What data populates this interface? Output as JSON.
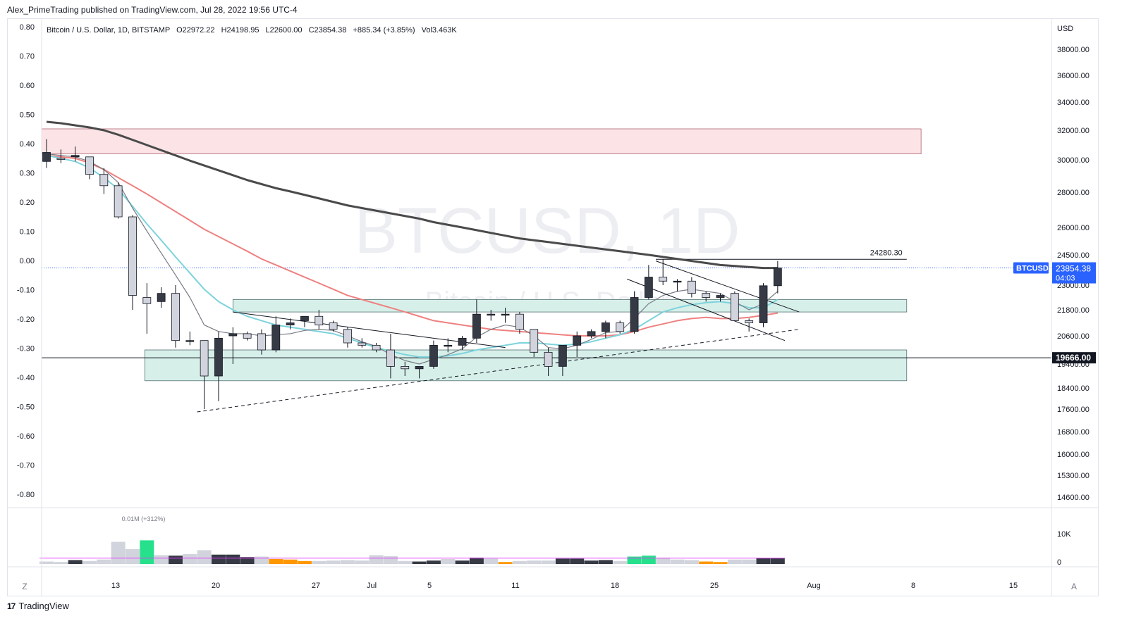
{
  "publisher_line": "Alex_PrimeTrading published on TradingView.com, Jul 28, 2022 19:56 UTC-4",
  "legend": {
    "name": "Bitcoin / U.S. Dollar, 1D, BITSTAMP",
    "open": "O22972.22",
    "high": "H24198.95",
    "low": "L22600.00",
    "close": "C23854.38",
    "change": "+885.34 (+3.85%)",
    "volume": "Vol3.463K"
  },
  "watermark": {
    "symbol": "BTCUSD, 1D",
    "name": "Bitcoin / U.S. Dollar"
  },
  "price_axis_unit": "USD",
  "current_price": {
    "symbol_tag": "BTCUSD",
    "price": "23854.38",
    "countdown": "04:03"
  },
  "horizontal_level": "19666.00",
  "resistance_label": "24280.30",
  "volume_peak_label": "0.01M (+312%)",
  "volume_axis_labels": [
    "10K",
    "0"
  ],
  "bottom_left_button": "Z",
  "bottom_right_button": "A",
  "footer_brand": "TradingView",
  "colors": {
    "up_candle": "#363a45",
    "down_candle": "#d1d4dc",
    "ema_fast": "#787b86",
    "ema_cyan": "#7dd3dc",
    "ema_red": "#ef8080",
    "ema_slow": "#4a4a4a",
    "supply_zone": "#fce4e6",
    "demand_zone": "#d7efe9",
    "price_tag": "#2962ff",
    "vol_green": "#26e08c",
    "vol_orange": "#ff9800",
    "vol_avg": "#e040fb"
  },
  "chart_data": {
    "type": "candlestick",
    "left_axis": {
      "ticks": [
        "0.80",
        "0.70",
        "0.60",
        "0.50",
        "0.40",
        "0.30",
        "0.20",
        "0.10",
        "0.00",
        "-0.10",
        "-0.20",
        "-0.30",
        "-0.40",
        "-0.50",
        "-0.60",
        "-0.70",
        "-0.80"
      ]
    },
    "right_axis": {
      "ticks": [
        "38000.00",
        "36000.00",
        "34000.00",
        "32000.00",
        "30000.00",
        "28000.00",
        "26000.00",
        "24500.00",
        "23000.00",
        "21800.00",
        "20600.00",
        "19400.00",
        "18400.00",
        "17600.00",
        "16800.00",
        "16000.00",
        "15300.00",
        "14600.00"
      ]
    },
    "x_axis": {
      "labels": [
        "13",
        "20",
        "27",
        "Jul",
        "5",
        "11",
        "18",
        "25",
        "Aug",
        "8",
        "15"
      ]
    },
    "candles": [
      {
        "o": 29900,
        "h": 31400,
        "l": 29500,
        "c": 30500
      },
      {
        "o": 30100,
        "h": 30700,
        "l": 29800,
        "c": 30050
      },
      {
        "o": 30200,
        "h": 30900,
        "l": 29900,
        "c": 30300
      },
      {
        "o": 30200,
        "h": 30200,
        "l": 28800,
        "c": 29100
      },
      {
        "o": 29100,
        "h": 29500,
        "l": 27900,
        "c": 28400
      },
      {
        "o": 28400,
        "h": 28600,
        "l": 26500,
        "c": 26600
      },
      {
        "o": 26600,
        "h": 26700,
        "l": 21800,
        "c": 22500
      },
      {
        "o": 22400,
        "h": 23100,
        "l": 20700,
        "c": 22100
      },
      {
        "o": 22200,
        "h": 22900,
        "l": 21900,
        "c": 22600
      },
      {
        "o": 22600,
        "h": 23000,
        "l": 20100,
        "c": 20400
      },
      {
        "o": 20400,
        "h": 20800,
        "l": 20200,
        "c": 20400
      },
      {
        "o": 20400,
        "h": 20400,
        "l": 17600,
        "c": 18900
      },
      {
        "o": 18900,
        "h": 20800,
        "l": 17900,
        "c": 20500
      },
      {
        "o": 20600,
        "h": 21000,
        "l": 19400,
        "c": 20700
      },
      {
        "o": 20700,
        "h": 20800,
        "l": 20400,
        "c": 20500
      },
      {
        "o": 20700,
        "h": 20900,
        "l": 19800,
        "c": 20000
      },
      {
        "o": 20000,
        "h": 21500,
        "l": 19900,
        "c": 21100
      },
      {
        "o": 21100,
        "h": 21400,
        "l": 20900,
        "c": 21200
      },
      {
        "o": 21300,
        "h": 21500,
        "l": 21000,
        "c": 21500
      },
      {
        "o": 21500,
        "h": 21800,
        "l": 20900,
        "c": 21100
      },
      {
        "o": 21200,
        "h": 21300,
        "l": 20800,
        "c": 20900
      },
      {
        "o": 20900,
        "h": 21000,
        "l": 20100,
        "c": 20300
      },
      {
        "o": 20300,
        "h": 20500,
        "l": 20100,
        "c": 20200
      },
      {
        "o": 20200,
        "h": 20300,
        "l": 19900,
        "c": 20000
      },
      {
        "o": 20000,
        "h": 20700,
        "l": 18800,
        "c": 19300
      },
      {
        "o": 19300,
        "h": 19500,
        "l": 18900,
        "c": 19200
      },
      {
        "o": 19200,
        "h": 19300,
        "l": 18800,
        "c": 19300
      },
      {
        "o": 19300,
        "h": 20400,
        "l": 19200,
        "c": 20200
      },
      {
        "o": 20200,
        "h": 20500,
        "l": 19900,
        "c": 20200
      },
      {
        "o": 20200,
        "h": 20600,
        "l": 20000,
        "c": 20500
      },
      {
        "o": 20500,
        "h": 22300,
        "l": 20300,
        "c": 21600
      },
      {
        "o": 21600,
        "h": 21800,
        "l": 21300,
        "c": 21600
      },
      {
        "o": 21600,
        "h": 21900,
        "l": 21200,
        "c": 21600
      },
      {
        "o": 21600,
        "h": 21700,
        "l": 20700,
        "c": 20900
      },
      {
        "o": 20900,
        "h": 20900,
        "l": 19700,
        "c": 19900
      },
      {
        "o": 19900,
        "h": 20100,
        "l": 18900,
        "c": 19300
      },
      {
        "o": 19300,
        "h": 20200,
        "l": 18900,
        "c": 20200
      },
      {
        "o": 20200,
        "h": 20800,
        "l": 19700,
        "c": 20600
      },
      {
        "o": 20600,
        "h": 20900,
        "l": 20500,
        "c": 20800
      },
      {
        "o": 20800,
        "h": 21300,
        "l": 20500,
        "c": 21200
      },
      {
        "o": 21200,
        "h": 21300,
        "l": 20700,
        "c": 20800
      },
      {
        "o": 20800,
        "h": 22700,
        "l": 20700,
        "c": 22400
      },
      {
        "o": 22400,
        "h": 24000,
        "l": 22300,
        "c": 23400
      },
      {
        "o": 23400,
        "h": 24280,
        "l": 23000,
        "c": 23200
      },
      {
        "o": 23200,
        "h": 23300,
        "l": 22700,
        "c": 23200
      },
      {
        "o": 23200,
        "h": 23400,
        "l": 22400,
        "c": 22600
      },
      {
        "o": 22600,
        "h": 22700,
        "l": 22200,
        "c": 22400
      },
      {
        "o": 22400,
        "h": 22600,
        "l": 22200,
        "c": 22500
      },
      {
        "o": 22600,
        "h": 22700,
        "l": 21300,
        "c": 21300
      },
      {
        "o": 21300,
        "h": 21400,
        "l": 20800,
        "c": 21200
      },
      {
        "o": 21200,
        "h": 23100,
        "l": 21000,
        "c": 22972
      },
      {
        "o": 22972,
        "h": 24199,
        "l": 22600,
        "c": 23854
      }
    ],
    "ema_slow": [
      32600,
      32500,
      32350,
      32200,
      32000,
      31700,
      31350,
      31000,
      30650,
      30300,
      29950,
      29650,
      29350,
      29050,
      28750,
      28500,
      28250,
      28050,
      27850,
      27650,
      27450,
      27250,
      27100,
      26950,
      26800,
      26650,
      26500,
      26300,
      26150,
      26000,
      25850,
      25700,
      25550,
      25400,
      25300,
      25200,
      25100,
      25000,
      24900,
      24800,
      24700,
      24600,
      24500,
      24400,
      24300,
      24200,
      24100,
      24000,
      23950,
      23900,
      23850,
      23850
    ],
    "ema_red": [
      30300,
      30200,
      30100,
      29800,
      29400,
      28900,
      28400,
      27900,
      27400,
      26900,
      26400,
      25900,
      25500,
      25100,
      24700,
      24300,
      24000,
      23700,
      23400,
      23100,
      22800,
      22500,
      22300,
      22100,
      21900,
      21700,
      21500,
      21300,
      21200,
      21100,
      21000,
      20900,
      20850,
      20800,
      20750,
      20700,
      20650,
      20600,
      20600,
      20600,
      20650,
      20800,
      21000,
      21150,
      21300,
      21400,
      21450,
      21400,
      21400,
      21450,
      21550,
      21650
    ],
    "ema_cyan": [
      30300,
      30100,
      29900,
      29500,
      28900,
      28200,
      27200,
      26200,
      25300,
      24400,
      23600,
      22800,
      22200,
      21800,
      21500,
      21300,
      21100,
      21000,
      20900,
      20800,
      20700,
      20500,
      20300,
      20100,
      19950,
      19800,
      19700,
      19700,
      19750,
      19850,
      20000,
      20100,
      20200,
      20300,
      20300,
      20250,
      20200,
      20250,
      20350,
      20500,
      20650,
      20900,
      21300,
      21700,
      21900,
      22050,
      22150,
      22200,
      22100,
      21900,
      21900,
      22300
    ],
    "ema_fast": [
      30400,
      30300,
      30200,
      29900,
      29400,
      28600,
      27100,
      25800,
      24600,
      23500,
      22400,
      21100,
      20800,
      20700,
      20700,
      20600,
      20650,
      20700,
      20850,
      20900,
      20850,
      20600,
      20350,
      20150,
      19800,
      19550,
      19400,
      19600,
      19800,
      20050,
      20550,
      20900,
      21100,
      21000,
      20600,
      20100,
      20050,
      20200,
      20450,
      20750,
      20800,
      21400,
      22100,
      22500,
      22700,
      22800,
      22700,
      22600,
      22200,
      21800,
      22100,
      22700
    ],
    "volume": [
      {
        "v": 0.5,
        "c": "down"
      },
      {
        "v": 0.4,
        "c": "down"
      },
      {
        "v": 0.8,
        "c": "up"
      },
      {
        "v": 0.6,
        "c": "down"
      },
      {
        "v": 0.9,
        "c": "down"
      },
      {
        "v": 4.5,
        "c": "down"
      },
      {
        "v": 3.0,
        "c": "down"
      },
      {
        "v": 4.8,
        "c": "green"
      },
      {
        "v": 1.8,
        "c": "down"
      },
      {
        "v": 1.7,
        "c": "up"
      },
      {
        "v": 2.0,
        "c": "down"
      },
      {
        "v": 2.8,
        "c": "down"
      },
      {
        "v": 1.9,
        "c": "up"
      },
      {
        "v": 1.9,
        "c": "up"
      },
      {
        "v": 1.4,
        "c": "up"
      },
      {
        "v": 1.5,
        "c": "down"
      },
      {
        "v": 1.0,
        "c": "orange"
      },
      {
        "v": 0.9,
        "c": "orange"
      },
      {
        "v": 0.6,
        "c": "orange"
      },
      {
        "v": 0.6,
        "c": "down"
      },
      {
        "v": 0.7,
        "c": "down"
      },
      {
        "v": 0.8,
        "c": "down"
      },
      {
        "v": 0.7,
        "c": "down"
      },
      {
        "v": 1.8,
        "c": "down"
      },
      {
        "v": 1.6,
        "c": "down"
      },
      {
        "v": 0.6,
        "c": "down"
      },
      {
        "v": 0.5,
        "c": "up"
      },
      {
        "v": 0.7,
        "c": "up"
      },
      {
        "v": 1.0,
        "c": "down"
      },
      {
        "v": 0.7,
        "c": "up"
      },
      {
        "v": 1.3,
        "c": "up"
      },
      {
        "v": 1.1,
        "c": "down"
      },
      {
        "v": 0.4,
        "c": "orange"
      },
      {
        "v": 0.6,
        "c": "down"
      },
      {
        "v": 0.7,
        "c": "down"
      },
      {
        "v": 0.7,
        "c": "down"
      },
      {
        "v": 1.1,
        "c": "up"
      },
      {
        "v": 1.1,
        "c": "up"
      },
      {
        "v": 0.7,
        "c": "up"
      },
      {
        "v": 0.8,
        "c": "up"
      },
      {
        "v": 0.6,
        "c": "down"
      },
      {
        "v": 1.5,
        "c": "green"
      },
      {
        "v": 1.7,
        "c": "green"
      },
      {
        "v": 1.3,
        "c": "down"
      },
      {
        "v": 0.9,
        "c": "down"
      },
      {
        "v": 0.8,
        "c": "down"
      },
      {
        "v": 0.5,
        "c": "orange"
      },
      {
        "v": 0.4,
        "c": "orange"
      },
      {
        "v": 0.9,
        "c": "down"
      },
      {
        "v": 0.9,
        "c": "down"
      },
      {
        "v": 1.2,
        "c": "up"
      },
      {
        "v": 1.2,
        "c": "up"
      }
    ],
    "vol_avg": 1.2,
    "supply_zone": {
      "from_bar": 0,
      "to_bar": 61,
      "top": 32100,
      "bottom": 30400
    },
    "demand_zone_upper": {
      "from_bar": 13,
      "to_bar": 60,
      "top": 22300,
      "bottom": 21700
    },
    "demand_zone_lower": {
      "from_bar": 7,
      "to_bar": 60,
      "top": 20000,
      "bottom": 18700
    },
    "level": 19666,
    "resistance": {
      "from_bar": 42.5,
      "to_bar": 60,
      "price": 24280
    },
    "trendlines": [
      {
        "p1": [
          10.5,
          17500
        ],
        "p2": [
          52.5,
          20900
        ],
        "style": "dashed"
      },
      {
        "p1": [
          13,
          21700
        ],
        "p2": [
          32,
          20100
        ],
        "style": "solid"
      },
      {
        "p1": [
          42.5,
          24200
        ],
        "p2": [
          52.5,
          21700
        ],
        "style": "solid"
      },
      {
        "p1": [
          40.5,
          23300
        ],
        "p2": [
          51.5,
          20400
        ],
        "style": "solid"
      }
    ]
  }
}
